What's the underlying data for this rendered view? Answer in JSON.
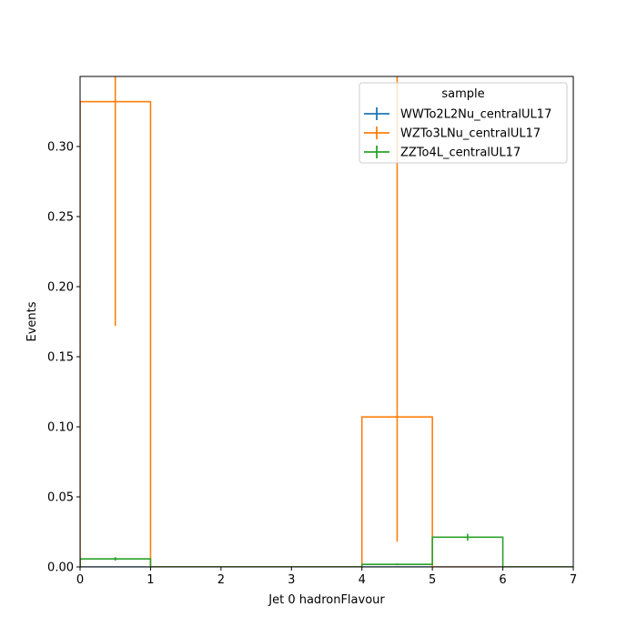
{
  "chart_data": {
    "type": "histogram",
    "xlabel": "Jet 0 hadronFlavour",
    "ylabel": "Events",
    "xlim": [
      0,
      7
    ],
    "ylim": [
      0,
      0.35
    ],
    "xticks": [
      0,
      1,
      2,
      3,
      4,
      5,
      6,
      7
    ],
    "xtick_labels": [
      "0",
      "1",
      "2",
      "3",
      "4",
      "5",
      "6",
      "7"
    ],
    "yticks": [
      0,
      0.05,
      0.1,
      0.15,
      0.2,
      0.25,
      0.3
    ],
    "ytick_labels": [
      "0.00",
      "0.05",
      "0.10",
      "0.15",
      "0.20",
      "0.25",
      "0.30"
    ],
    "bin_edges": [
      0,
      1,
      2,
      3,
      4,
      5,
      6,
      7
    ],
    "legend": {
      "title": "sample",
      "position": "top-right"
    },
    "series": [
      {
        "name": "WWTo2L2Nu_centralUL17",
        "color": "#1f77b4",
        "values": [
          0,
          0,
          0,
          0,
          0,
          0,
          0
        ],
        "err_low": [
          0,
          0,
          0,
          0,
          0,
          0,
          0
        ],
        "err_high": [
          0,
          0,
          0,
          0,
          0,
          0,
          0
        ]
      },
      {
        "name": "WZTo3LNu_centralUL17",
        "color": "#ff7f0e",
        "values": [
          0.332,
          0,
          0,
          0,
          0.107,
          0,
          0
        ],
        "err_low": [
          0.172,
          0,
          0,
          0,
          0.018,
          0,
          0
        ],
        "err_high": [
          0.4,
          0,
          0,
          0,
          0.4,
          0,
          0
        ]
      },
      {
        "name": "ZZTo4L_centralUL17",
        "color": "#2ca02c",
        "values": [
          0.0057,
          0,
          0,
          0,
          0.0018,
          0.0212,
          0
        ],
        "err_low": [
          0.0045,
          0,
          0,
          0,
          0.0012,
          0.0187,
          0
        ],
        "err_high": [
          0.007,
          0,
          0,
          0,
          0.0024,
          0.0237,
          0
        ]
      }
    ]
  }
}
